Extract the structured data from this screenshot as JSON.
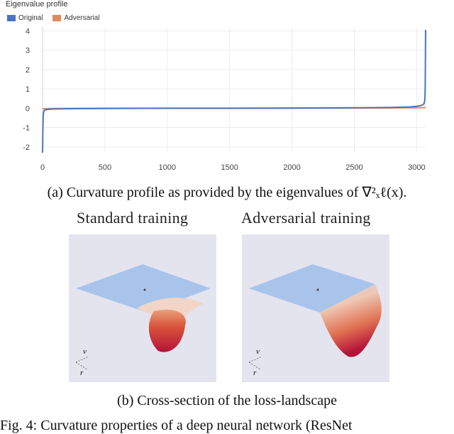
{
  "chart_title": "Eigenvalue profile",
  "legend": [
    {
      "name": "Original",
      "color": "#4a74c0"
    },
    {
      "name": "Adversarial",
      "color": "#e0895a"
    }
  ],
  "chart_data": {
    "type": "line",
    "title": "Eigenvalue profile",
    "xlabel": "",
    "ylabel": "",
    "xlim": [
      0,
      3072
    ],
    "ylim": [
      -2.3,
      4.2
    ],
    "x_ticks": [
      "0",
      "500",
      "1000",
      "1500",
      "2000",
      "2500",
      "3000"
    ],
    "y_ticks": [
      "4",
      "3",
      "2",
      "1",
      "0",
      "-1",
      "-2"
    ],
    "grid": true,
    "legend_position": "top-left",
    "series": [
      {
        "name": "Original",
        "color": "#4a74c0",
        "x": [
          0,
          2,
          5,
          10,
          20,
          40,
          80,
          150,
          300,
          600,
          1000,
          1500,
          2000,
          2500,
          2800,
          2950,
          3000,
          3030,
          3050,
          3060,
          3065,
          3068,
          3070,
          3072
        ],
        "y": [
          -2.3,
          -1.2,
          -0.35,
          -0.15,
          -0.09,
          -0.06,
          -0.04,
          -0.03,
          -0.02,
          -0.01,
          0.0,
          0.0,
          0.01,
          0.02,
          0.04,
          0.07,
          0.1,
          0.13,
          0.18,
          0.25,
          0.4,
          0.8,
          2.0,
          4.05
        ]
      },
      {
        "name": "Adversarial",
        "color": "#e0895a",
        "x": [
          0,
          10,
          50,
          200,
          500,
          1500,
          2500,
          2900,
          3050,
          3072
        ],
        "y": [
          -0.05,
          -0.03,
          -0.02,
          -0.01,
          0.0,
          0.0,
          0.01,
          0.02,
          0.03,
          0.04
        ]
      }
    ]
  },
  "caption_a": "(a) Curvature profile as provided by the eigenvalues of ∇²ₓℓ(x).",
  "panels": [
    {
      "title": "Standard training",
      "axis_v": "v",
      "axis_r": "r"
    },
    {
      "title": "Adversarial training",
      "axis_v": "v",
      "axis_r": "r"
    }
  ],
  "caption_b": "(b) Cross-section of the loss-landscape",
  "figure_caption_partial": "Fig. 4: Curvature properties of a deep neural network (ResNet"
}
